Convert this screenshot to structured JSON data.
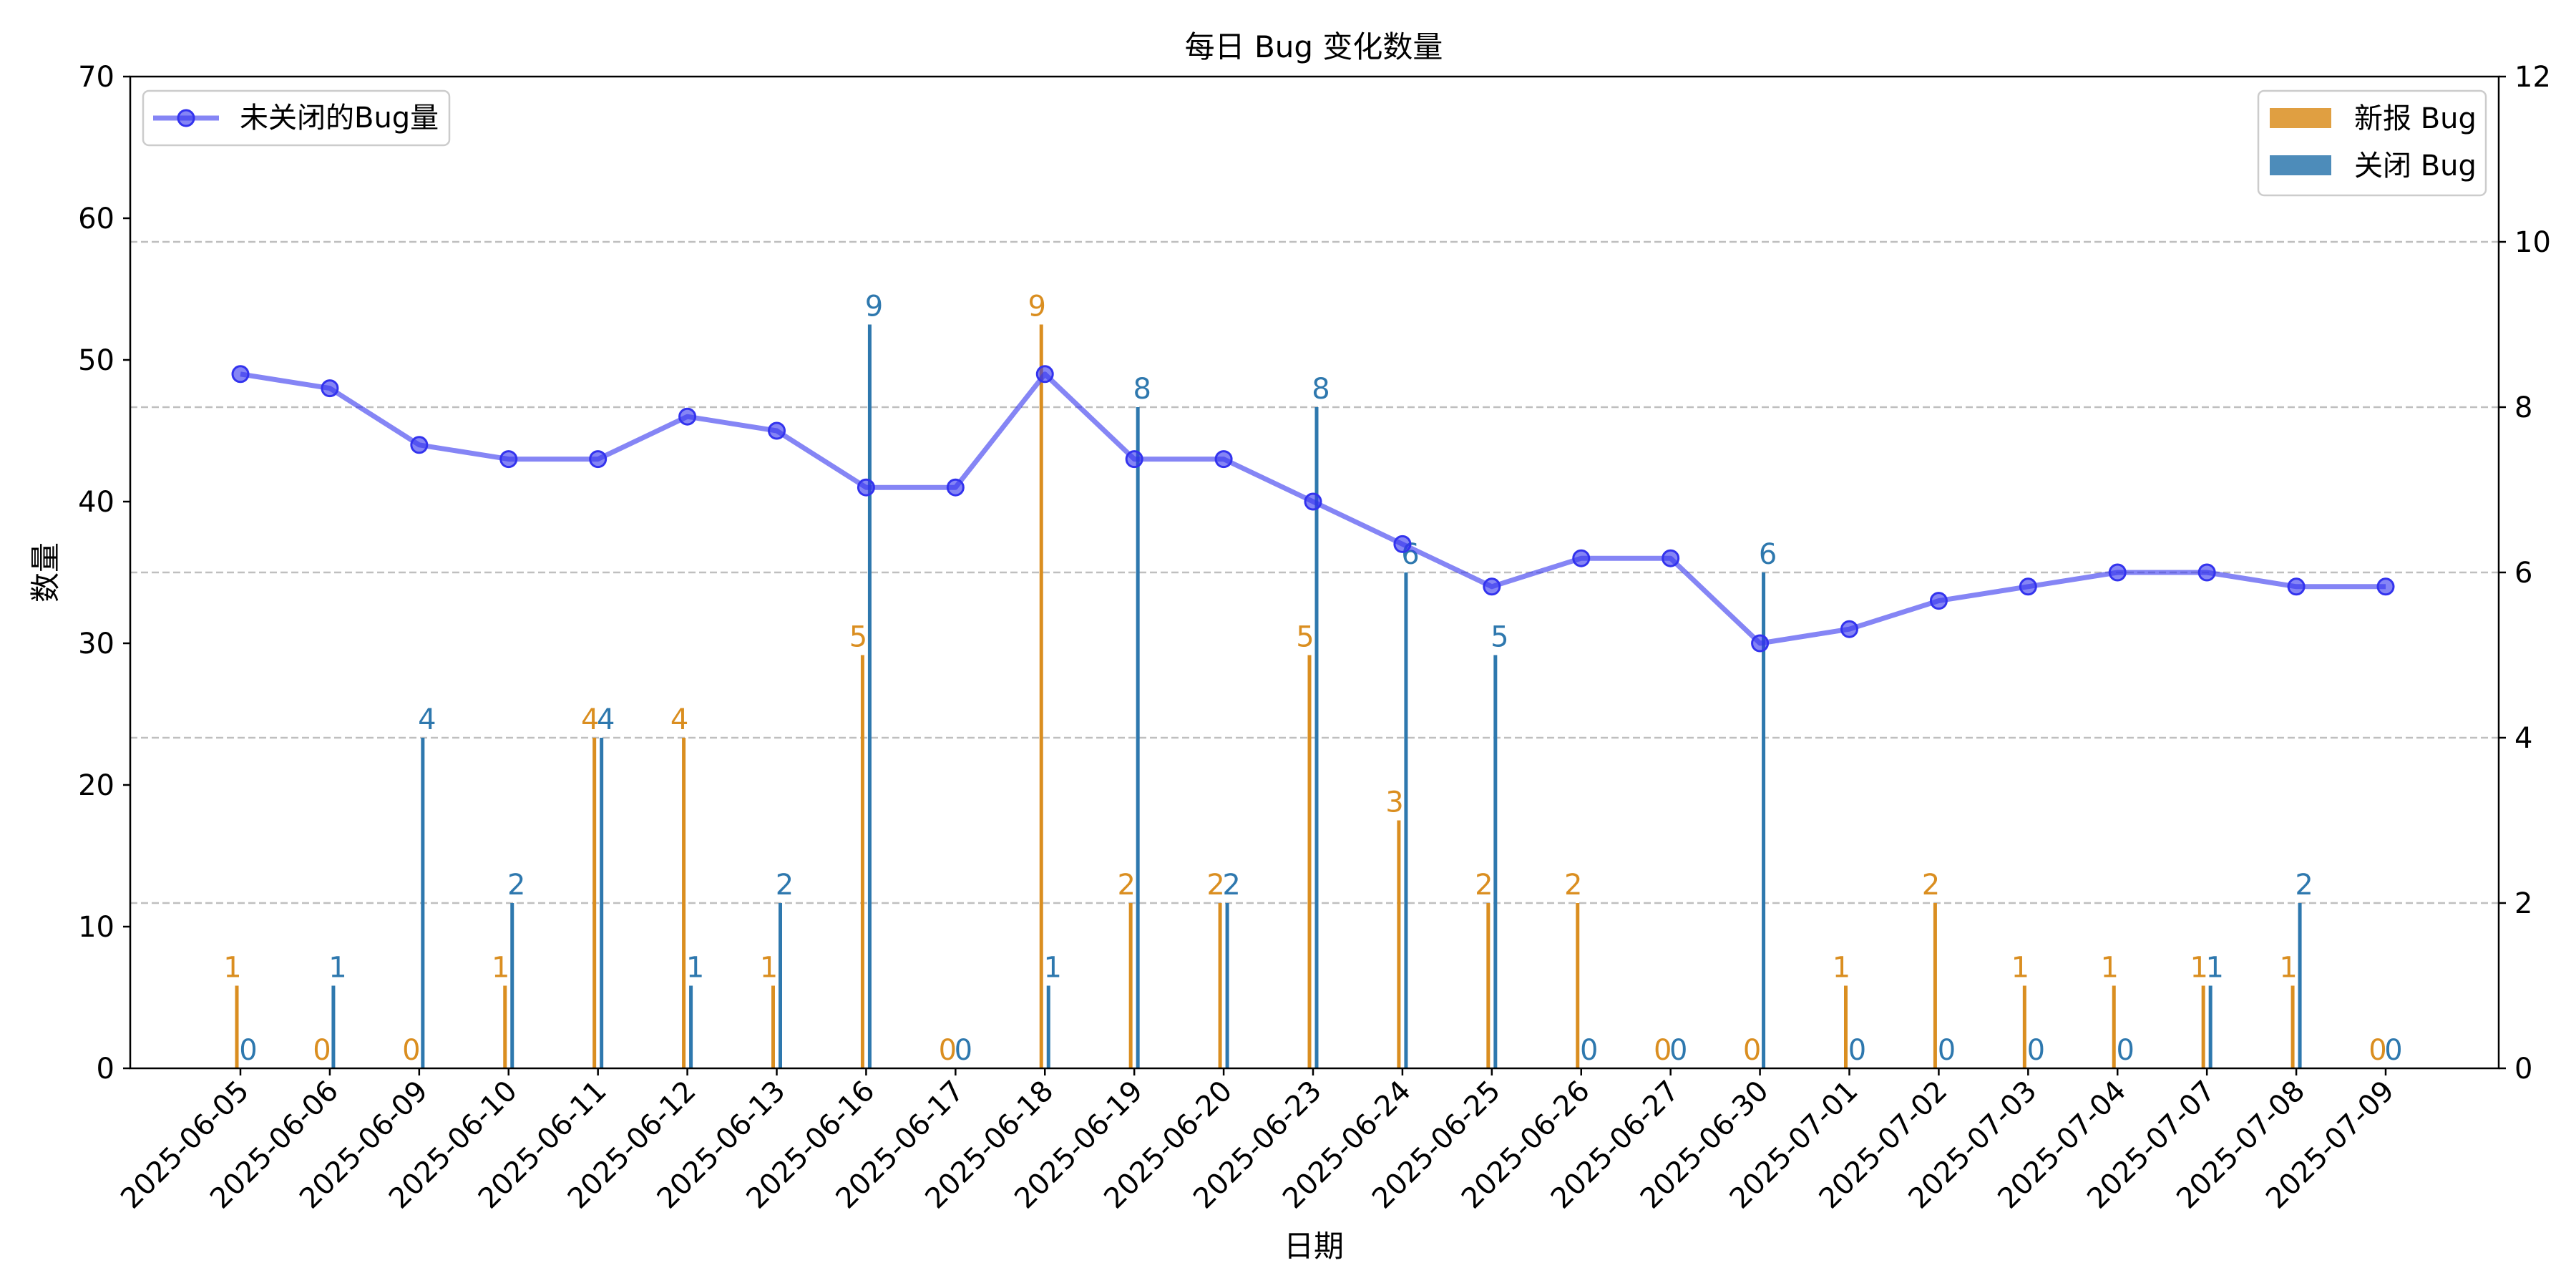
{
  "chart_data": {
    "type": "bar+line",
    "title": "每日 Bug 变化数量",
    "xlabel": "日期",
    "ylabel": "数量",
    "ylim_left": [
      0,
      70
    ],
    "ylim_right": [
      0,
      12
    ],
    "yticks_left": [
      "0",
      "10",
      "20",
      "30",
      "40",
      "50",
      "60",
      "70"
    ],
    "yticks_right": [
      "0",
      "2",
      "4",
      "6",
      "8",
      "10",
      "12"
    ],
    "grid": "horizontal dashed, right axis",
    "categories": [
      "2025-06-05",
      "2025-06-06",
      "2025-06-09",
      "2025-06-10",
      "2025-06-11",
      "2025-06-12",
      "2025-06-13",
      "2025-06-16",
      "2025-06-17",
      "2025-06-18",
      "2025-06-19",
      "2025-06-20",
      "2025-06-23",
      "2025-06-24",
      "2025-06-25",
      "2025-06-26",
      "2025-06-27",
      "2025-06-30",
      "2025-07-01",
      "2025-07-02",
      "2025-07-03",
      "2025-07-04",
      "2025-07-07",
      "2025-07-08",
      "2025-07-09"
    ],
    "series": [
      {
        "name": "新报 Bug",
        "type": "bar",
        "axis": "right",
        "color": "#DA8E20",
        "values": [
          1,
          0,
          0,
          1,
          4,
          4,
          1,
          5,
          0,
          9,
          2,
          2,
          5,
          3,
          2,
          2,
          0,
          0,
          1,
          2,
          1,
          1,
          1,
          1,
          0
        ]
      },
      {
        "name": "关闭 Bug",
        "type": "bar",
        "axis": "right",
        "color": "#2E78AE",
        "values": [
          0,
          1,
          4,
          2,
          4,
          1,
          2,
          9,
          0,
          1,
          8,
          2,
          8,
          6,
          5,
          0,
          0,
          6,
          0,
          0,
          0,
          0,
          1,
          2,
          0
        ]
      },
      {
        "name": "未关闭的Bug量",
        "type": "line",
        "axis": "left",
        "color": "#3333EE",
        "values": [
          49,
          48,
          44,
          43,
          43,
          46,
          45,
          41,
          41,
          49,
          43,
          43,
          40,
          37,
          34,
          36,
          36,
          30,
          31,
          33,
          34,
          35,
          35,
          34,
          34
        ]
      }
    ],
    "legends": [
      {
        "position": "top-left",
        "entries": [
          "未关闭的Bug量"
        ]
      },
      {
        "position": "top-right",
        "entries": [
          "新报 Bug",
          "关闭 Bug"
        ]
      }
    ]
  }
}
